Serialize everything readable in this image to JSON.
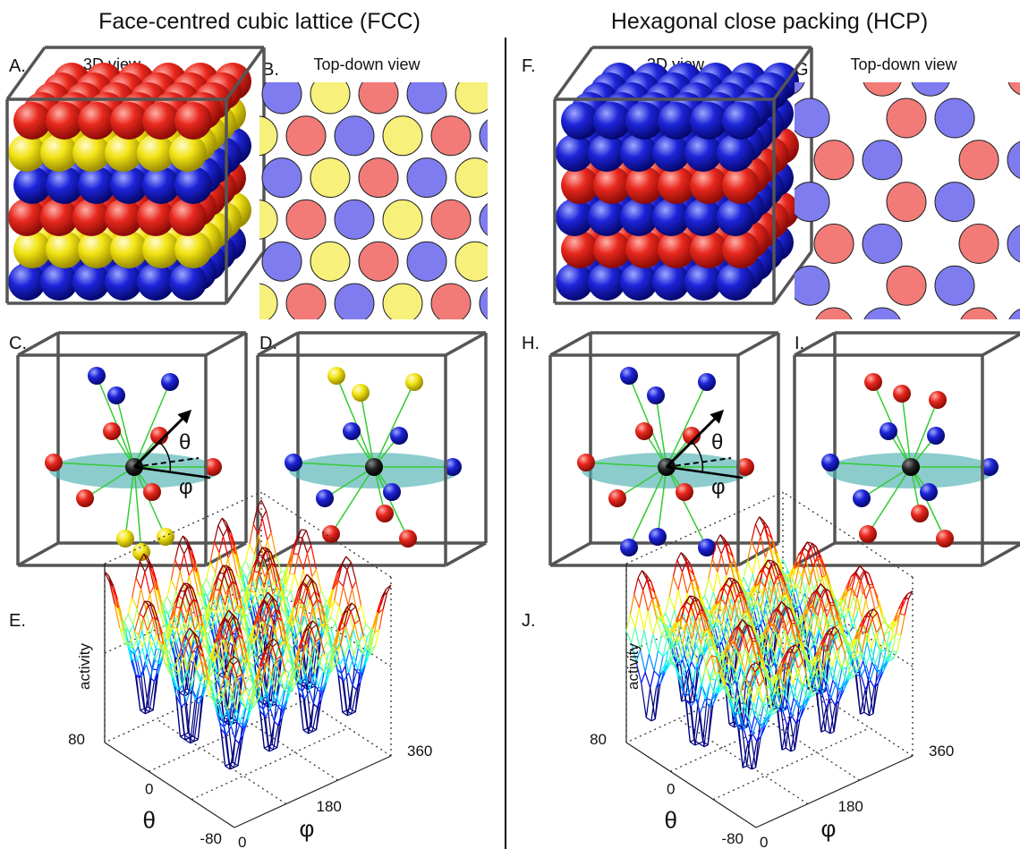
{
  "left": {
    "title": "Face-centred cubic lattice (FCC)",
    "panels": {
      "a": {
        "label": "A.",
        "caption": "3D view"
      },
      "b": {
        "label": "B.",
        "caption": "Top-down view"
      },
      "c": {
        "label": "C."
      },
      "d": {
        "label": "D."
      },
      "e": {
        "label": "E."
      }
    },
    "angles": {
      "theta": "θ",
      "phi": "φ"
    },
    "plot": {
      "zlabel": "activity",
      "theta_label": "θ",
      "phi_label": "φ",
      "theta_ticks": [
        "80",
        "0",
        "-80"
      ],
      "phi_ticks": [
        "0",
        "180",
        "360"
      ]
    }
  },
  "right": {
    "title": "Hexagonal close packing (HCP)",
    "panels": {
      "a": {
        "label": "F.",
        "caption": "3D view"
      },
      "b": {
        "label": "G.",
        "caption": "Top-down view"
      },
      "c": {
        "label": "H."
      },
      "d": {
        "label": "I."
      },
      "e": {
        "label": "J."
      }
    },
    "angles": {
      "theta": "θ",
      "phi": "φ"
    },
    "plot": {
      "zlabel": "activity",
      "theta_label": "θ",
      "phi_label": "φ",
      "theta_ticks": [
        "80",
        "0",
        "-80"
      ],
      "phi_ticks": [
        "0",
        "180",
        "360"
      ]
    }
  }
}
